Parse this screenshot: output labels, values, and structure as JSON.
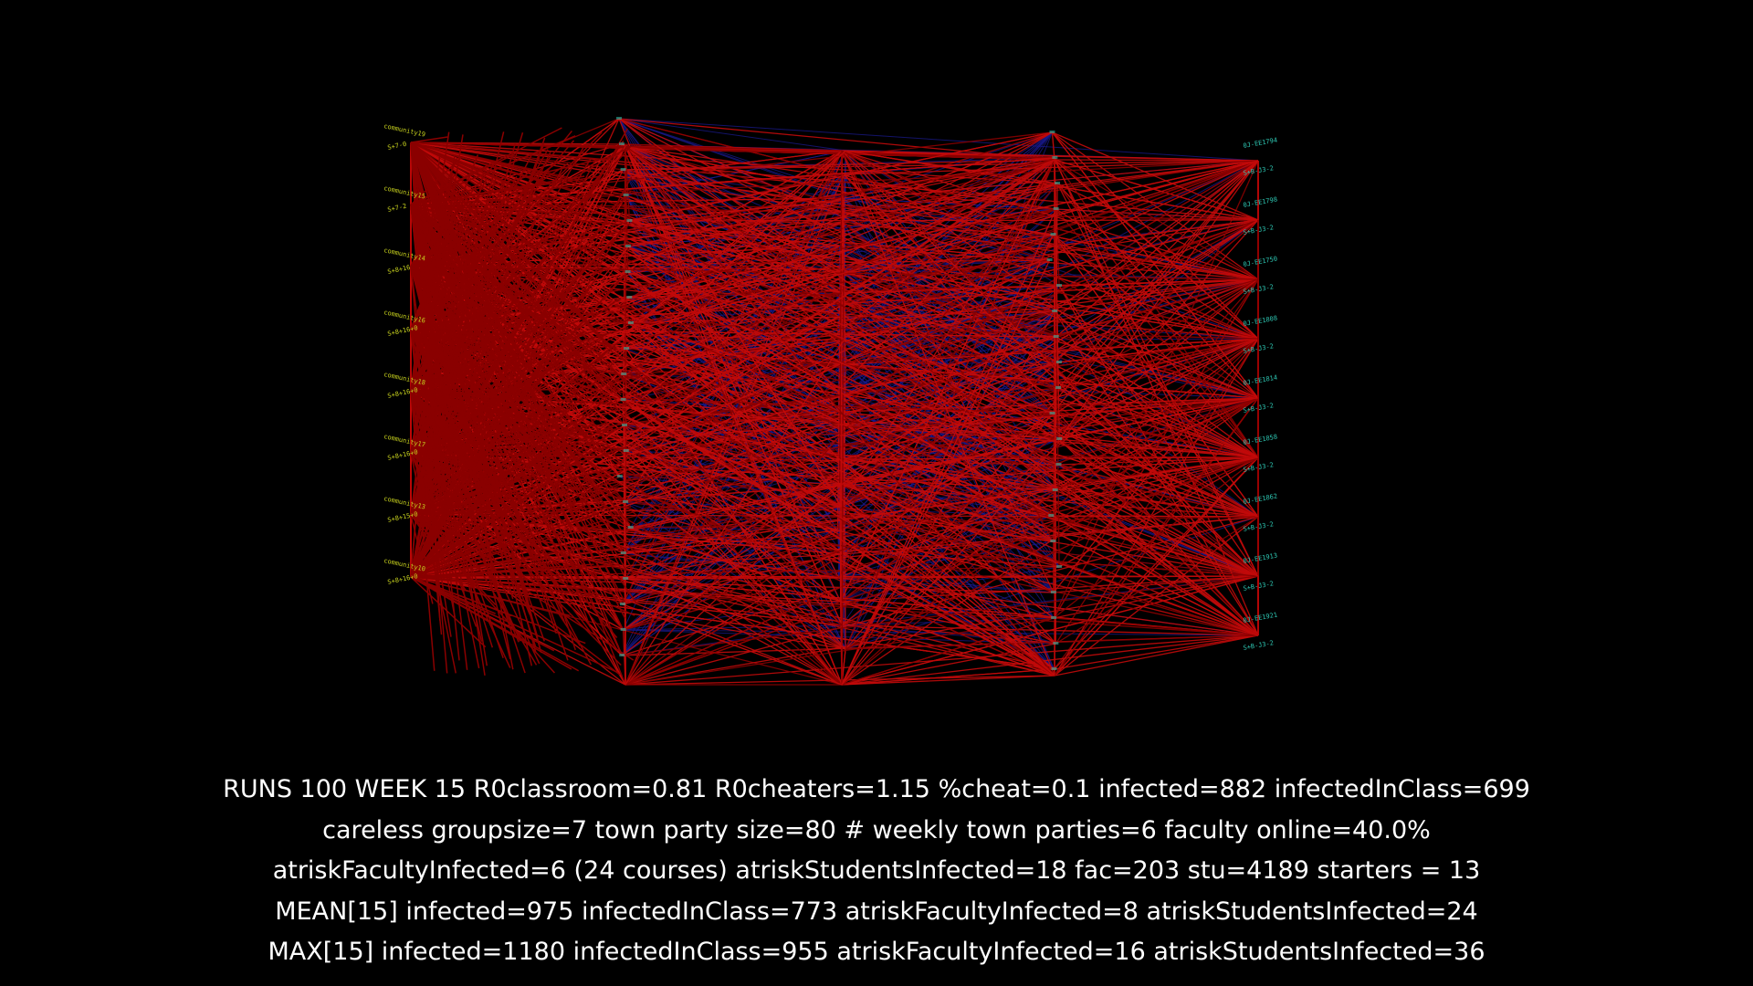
{
  "colors": {
    "background": "#000000",
    "infection_edge": "#c20a0a",
    "infection_edge_dark": "#8a0000",
    "contact_edge": "#1a1a8c",
    "community_label": "#c8d21e",
    "course_label": "#2ec8b4",
    "stats_text": "#ffffff"
  },
  "network": {
    "community_labels": [
      {
        "name": "community19",
        "code": "S+7-0"
      },
      {
        "name": "community15",
        "code": "S+7-2"
      },
      {
        "name": "community14",
        "code": "S+8+16"
      },
      {
        "name": "community16",
        "code": "S+8+16+0"
      },
      {
        "name": "community18",
        "code": "S+8+16+0"
      },
      {
        "name": "community17",
        "code": "S+8+16+0"
      },
      {
        "name": "community13",
        "code": "S+8+15+0"
      },
      {
        "name": "community10",
        "code": "S+8+16+0"
      }
    ],
    "course_labels": [
      {
        "name": "0J-EE1794",
        "code": "S+B-J3-2"
      },
      {
        "name": "0J-EE1798",
        "code": "S+B-J3-2"
      },
      {
        "name": "0J-EE1750",
        "code": "S+B-J3-2"
      },
      {
        "name": "0J-EE1808",
        "code": "S+B-J3-2"
      },
      {
        "name": "0J-EE1814",
        "code": "S+B-J3-2"
      },
      {
        "name": "0J-EE1858",
        "code": "S+B-J3-2"
      },
      {
        "name": "0J-EE1862",
        "code": "S+B-J3-2"
      },
      {
        "name": "0J-EE1913",
        "code": "S+B-J3-2"
      },
      {
        "name": "0J-EE1921",
        "code": "S+B-J3-2"
      }
    ]
  },
  "stats": {
    "line1": "RUNS 100 WEEK 15 R0classroom=0.81 R0cheaters=1.15 %cheat=0.1 infected=882 infectedInClass=699",
    "line2": "careless groupsize=7 town party size=80 # weekly town parties=6 faculty online=40.0%",
    "line3": "atriskFacultyInfected=6 (24 courses) atriskStudentsInfected=18 fac=203 stu=4189 starters = 13",
    "line4": "MEAN[15] infected=975 infectedInClass=773 atriskFacultyInfected=8 atriskStudentsInfected=24",
    "line5": "MAX[15] infected=1180 infectedInClass=955 atriskFacultyInfected=16 atriskStudentsInfected=36"
  }
}
